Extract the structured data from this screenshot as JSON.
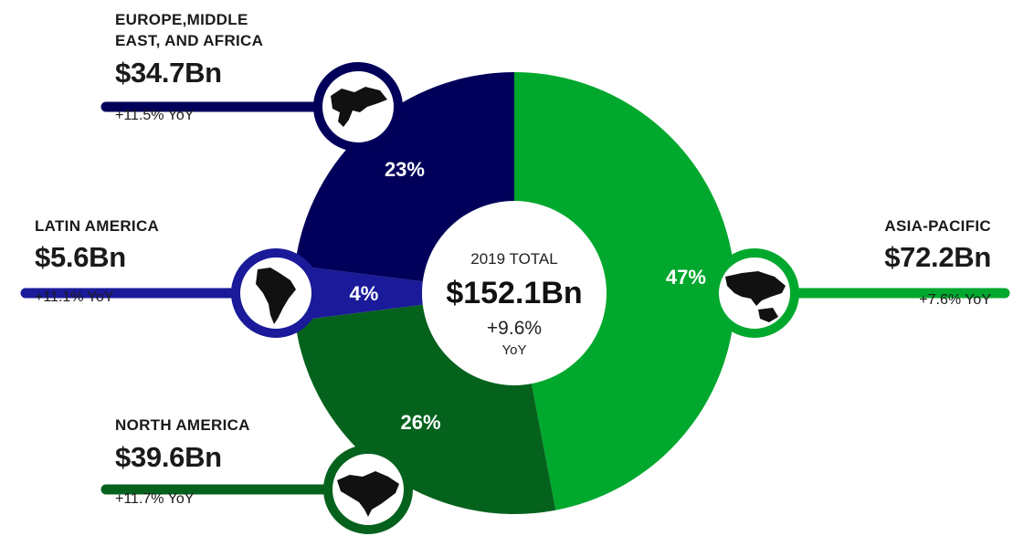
{
  "center": {
    "title": "2019 TOTAL",
    "total": "$152.1Bn",
    "growth": "+9.6%",
    "growth_unit": "YoY"
  },
  "regions": [
    {
      "key": "emea",
      "name_lines": [
        "EUROPE,MIDDLE",
        "EAST, AND AFRICA"
      ],
      "value": "$34.7Bn",
      "yoy": "+11.5% YoY",
      "icon": "europe-map-icon"
    },
    {
      "key": "latam",
      "name_lines": [
        "LATIN AMERICA"
      ],
      "value": "$5.6Bn",
      "yoy": "+11.1% YoY",
      "icon": "south-america-map-icon"
    },
    {
      "key": "na",
      "name_lines": [
        "NORTH AMERICA"
      ],
      "value": "$39.6Bn",
      "yoy": "+11.7% YoY",
      "icon": "north-america-map-icon"
    },
    {
      "key": "apac",
      "name_lines": [
        "ASIA-PACIFIC"
      ],
      "value": "$72.2Bn",
      "yoy": "+7.6% YoY",
      "icon": "asia-pacific-map-icon"
    }
  ],
  "chart_data": {
    "type": "pie",
    "categories": [
      "Asia-Pacific",
      "North America",
      "Latin America",
      "Europe, Middle East, and Africa"
    ],
    "values": [
      47,
      26,
      4,
      23
    ],
    "value_labels": [
      "47%",
      "26%",
      "4%",
      "23%"
    ],
    "amounts_bn": [
      72.2,
      39.6,
      5.6,
      34.7
    ],
    "colors": [
      "#00a82d",
      "#05621d",
      "#1a1a9a",
      "#00005a"
    ],
    "title": "",
    "donut": true
  }
}
